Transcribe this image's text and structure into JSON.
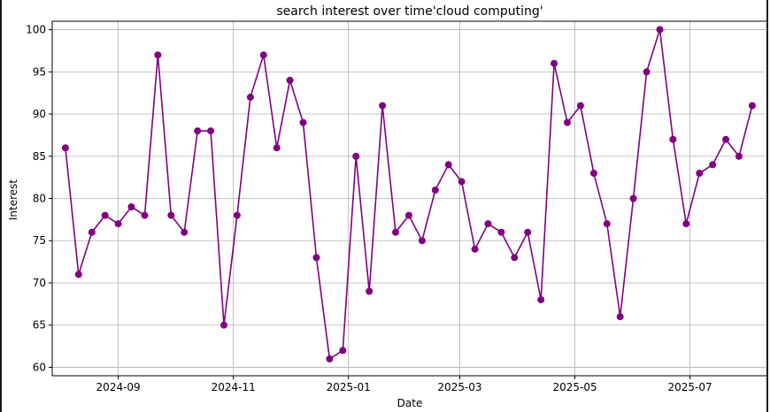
{
  "chart_data": {
    "type": "line",
    "title": "search interest over time'cloud computing'",
    "xlabel": "Date",
    "ylabel": "Interest",
    "ylim": [
      59,
      101
    ],
    "xlim": [
      "2024-07-28",
      "2025-08-11"
    ],
    "x_ticks": [
      "2024-09",
      "2024-11",
      "2025-01",
      "2025-03",
      "2025-05",
      "2025-07"
    ],
    "y_ticks": [
      60,
      65,
      70,
      75,
      80,
      85,
      90,
      95,
      100
    ],
    "grid": true,
    "line_color": "#800080",
    "marker": "circle",
    "x": [
      "2024-08-04",
      "2024-08-11",
      "2024-08-18",
      "2024-08-25",
      "2024-09-01",
      "2024-09-08",
      "2024-09-15",
      "2024-09-22",
      "2024-09-29",
      "2024-10-06",
      "2024-10-13",
      "2024-10-20",
      "2024-10-27",
      "2024-11-03",
      "2024-11-10",
      "2024-11-17",
      "2024-11-24",
      "2024-12-01",
      "2024-12-08",
      "2024-12-15",
      "2024-12-22",
      "2024-12-29",
      "2025-01-05",
      "2025-01-12",
      "2025-01-19",
      "2025-01-26",
      "2025-02-02",
      "2025-02-09",
      "2025-02-16",
      "2025-02-23",
      "2025-03-02",
      "2025-03-09",
      "2025-03-16",
      "2025-03-23",
      "2025-03-30",
      "2025-04-06",
      "2025-04-13",
      "2025-04-20",
      "2025-04-27",
      "2025-05-04",
      "2025-05-11",
      "2025-05-18",
      "2025-05-25",
      "2025-06-01",
      "2025-06-08",
      "2025-06-15",
      "2025-06-22",
      "2025-06-29",
      "2025-07-06",
      "2025-07-13",
      "2025-07-20",
      "2025-07-27",
      "2025-08-03"
    ],
    "values": [
      86,
      71,
      76,
      78,
      77,
      79,
      78,
      97,
      78,
      76,
      88,
      88,
      65,
      78,
      92,
      97,
      86,
      94,
      89,
      73,
      61,
      62,
      85,
      69,
      91,
      76,
      78,
      75,
      81,
      84,
      82,
      74,
      77,
      76,
      73,
      76,
      68,
      96,
      89,
      91,
      83,
      77,
      66,
      80,
      95,
      100,
      87,
      77,
      83,
      84,
      87,
      85,
      91
    ]
  }
}
